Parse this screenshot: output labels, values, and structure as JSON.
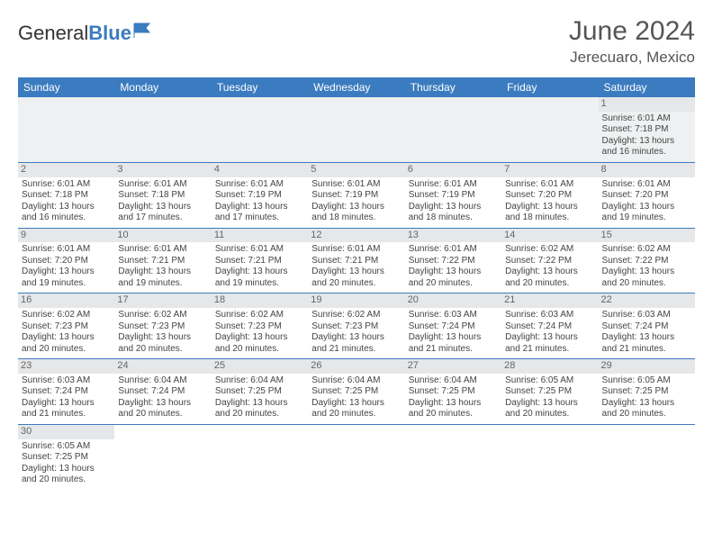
{
  "brand": {
    "part1": "General",
    "part2": "Blue"
  },
  "title": "June 2024",
  "location": "Jerecuaro, Mexico",
  "colors": {
    "header_bg": "#3b7bbf",
    "daynum_bg": "#e5e7e9",
    "border": "#3b7bbf"
  },
  "weekdays": [
    "Sunday",
    "Monday",
    "Tuesday",
    "Wednesday",
    "Thursday",
    "Friday",
    "Saturday"
  ],
  "weeks": [
    [
      null,
      null,
      null,
      null,
      null,
      null,
      {
        "d": "1",
        "sr": "Sunrise: 6:01 AM",
        "ss": "Sunset: 7:18 PM",
        "dl": "Daylight: 13 hours and 16 minutes."
      }
    ],
    [
      {
        "d": "2",
        "sr": "Sunrise: 6:01 AM",
        "ss": "Sunset: 7:18 PM",
        "dl": "Daylight: 13 hours and 16 minutes."
      },
      {
        "d": "3",
        "sr": "Sunrise: 6:01 AM",
        "ss": "Sunset: 7:18 PM",
        "dl": "Daylight: 13 hours and 17 minutes."
      },
      {
        "d": "4",
        "sr": "Sunrise: 6:01 AM",
        "ss": "Sunset: 7:19 PM",
        "dl": "Daylight: 13 hours and 17 minutes."
      },
      {
        "d": "5",
        "sr": "Sunrise: 6:01 AM",
        "ss": "Sunset: 7:19 PM",
        "dl": "Daylight: 13 hours and 18 minutes."
      },
      {
        "d": "6",
        "sr": "Sunrise: 6:01 AM",
        "ss": "Sunset: 7:19 PM",
        "dl": "Daylight: 13 hours and 18 minutes."
      },
      {
        "d": "7",
        "sr": "Sunrise: 6:01 AM",
        "ss": "Sunset: 7:20 PM",
        "dl": "Daylight: 13 hours and 18 minutes."
      },
      {
        "d": "8",
        "sr": "Sunrise: 6:01 AM",
        "ss": "Sunset: 7:20 PM",
        "dl": "Daylight: 13 hours and 19 minutes."
      }
    ],
    [
      {
        "d": "9",
        "sr": "Sunrise: 6:01 AM",
        "ss": "Sunset: 7:20 PM",
        "dl": "Daylight: 13 hours and 19 minutes."
      },
      {
        "d": "10",
        "sr": "Sunrise: 6:01 AM",
        "ss": "Sunset: 7:21 PM",
        "dl": "Daylight: 13 hours and 19 minutes."
      },
      {
        "d": "11",
        "sr": "Sunrise: 6:01 AM",
        "ss": "Sunset: 7:21 PM",
        "dl": "Daylight: 13 hours and 19 minutes."
      },
      {
        "d": "12",
        "sr": "Sunrise: 6:01 AM",
        "ss": "Sunset: 7:21 PM",
        "dl": "Daylight: 13 hours and 20 minutes."
      },
      {
        "d": "13",
        "sr": "Sunrise: 6:01 AM",
        "ss": "Sunset: 7:22 PM",
        "dl": "Daylight: 13 hours and 20 minutes."
      },
      {
        "d": "14",
        "sr": "Sunrise: 6:02 AM",
        "ss": "Sunset: 7:22 PM",
        "dl": "Daylight: 13 hours and 20 minutes."
      },
      {
        "d": "15",
        "sr": "Sunrise: 6:02 AM",
        "ss": "Sunset: 7:22 PM",
        "dl": "Daylight: 13 hours and 20 minutes."
      }
    ],
    [
      {
        "d": "16",
        "sr": "Sunrise: 6:02 AM",
        "ss": "Sunset: 7:23 PM",
        "dl": "Daylight: 13 hours and 20 minutes."
      },
      {
        "d": "17",
        "sr": "Sunrise: 6:02 AM",
        "ss": "Sunset: 7:23 PM",
        "dl": "Daylight: 13 hours and 20 minutes."
      },
      {
        "d": "18",
        "sr": "Sunrise: 6:02 AM",
        "ss": "Sunset: 7:23 PM",
        "dl": "Daylight: 13 hours and 20 minutes."
      },
      {
        "d": "19",
        "sr": "Sunrise: 6:02 AM",
        "ss": "Sunset: 7:23 PM",
        "dl": "Daylight: 13 hours and 21 minutes."
      },
      {
        "d": "20",
        "sr": "Sunrise: 6:03 AM",
        "ss": "Sunset: 7:24 PM",
        "dl": "Daylight: 13 hours and 21 minutes."
      },
      {
        "d": "21",
        "sr": "Sunrise: 6:03 AM",
        "ss": "Sunset: 7:24 PM",
        "dl": "Daylight: 13 hours and 21 minutes."
      },
      {
        "d": "22",
        "sr": "Sunrise: 6:03 AM",
        "ss": "Sunset: 7:24 PM",
        "dl": "Daylight: 13 hours and 21 minutes."
      }
    ],
    [
      {
        "d": "23",
        "sr": "Sunrise: 6:03 AM",
        "ss": "Sunset: 7:24 PM",
        "dl": "Daylight: 13 hours and 21 minutes."
      },
      {
        "d": "24",
        "sr": "Sunrise: 6:04 AM",
        "ss": "Sunset: 7:24 PM",
        "dl": "Daylight: 13 hours and 20 minutes."
      },
      {
        "d": "25",
        "sr": "Sunrise: 6:04 AM",
        "ss": "Sunset: 7:25 PM",
        "dl": "Daylight: 13 hours and 20 minutes."
      },
      {
        "d": "26",
        "sr": "Sunrise: 6:04 AM",
        "ss": "Sunset: 7:25 PM",
        "dl": "Daylight: 13 hours and 20 minutes."
      },
      {
        "d": "27",
        "sr": "Sunrise: 6:04 AM",
        "ss": "Sunset: 7:25 PM",
        "dl": "Daylight: 13 hours and 20 minutes."
      },
      {
        "d": "28",
        "sr": "Sunrise: 6:05 AM",
        "ss": "Sunset: 7:25 PM",
        "dl": "Daylight: 13 hours and 20 minutes."
      },
      {
        "d": "29",
        "sr": "Sunrise: 6:05 AM",
        "ss": "Sunset: 7:25 PM",
        "dl": "Daylight: 13 hours and 20 minutes."
      }
    ],
    [
      {
        "d": "30",
        "sr": "Sunrise: 6:05 AM",
        "ss": "Sunset: 7:25 PM",
        "dl": "Daylight: 13 hours and 20 minutes."
      },
      null,
      null,
      null,
      null,
      null,
      null
    ]
  ]
}
